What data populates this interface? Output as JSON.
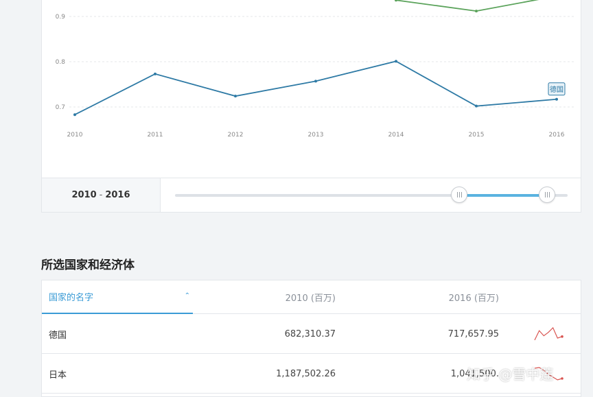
{
  "chart_data": {
    "type": "line",
    "x": [
      "2010",
      "2011",
      "2012",
      "2013",
      "2014",
      "2015",
      "2016"
    ],
    "ylim": [
      0.68,
      0.93
    ],
    "yticks": [
      "0.9",
      "0.8",
      "0.7"
    ],
    "ytick_values": [
      0.9,
      0.8,
      0.7
    ],
    "grid": true,
    "series": [
      {
        "name": "德国",
        "color": "#2e7aa5",
        "values": [
          0.683,
          0.773,
          0.724,
          0.757,
          0.801,
          0.702,
          0.717
        ]
      },
      {
        "name": "",
        "color": "#5ba35b",
        "values": [
          null,
          null,
          null,
          null,
          0.936,
          0.912,
          0.945
        ]
      }
    ],
    "end_label": "德国"
  },
  "range": {
    "start": "2010",
    "sep": "-",
    "end": "2016"
  },
  "section_title": "所选国家和经济体",
  "table": {
    "headers": {
      "name": "国家的名字",
      "col1": "2010 (百万)",
      "col2": "2016 (百万)"
    },
    "rows": [
      {
        "name": "德国",
        "v2010": "682,310.37",
        "v2016": "717,657.95",
        "spark": [
          0.683,
          0.773,
          0.724,
          0.757,
          0.801,
          0.702,
          0.717
        ]
      },
      {
        "name": "日本",
        "v2010": "1,187,502.26",
        "v2016": "1,041,500.",
        "spark": [
          1.19,
          1.2,
          1.16,
          1.1,
          1.06,
          1.02,
          1.04
        ]
      }
    ]
  },
  "colors": {
    "accent": "#3a9bd6",
    "spark": "#d9534f"
  },
  "watermark": {
    "text": "知乎 @雪中莲"
  }
}
